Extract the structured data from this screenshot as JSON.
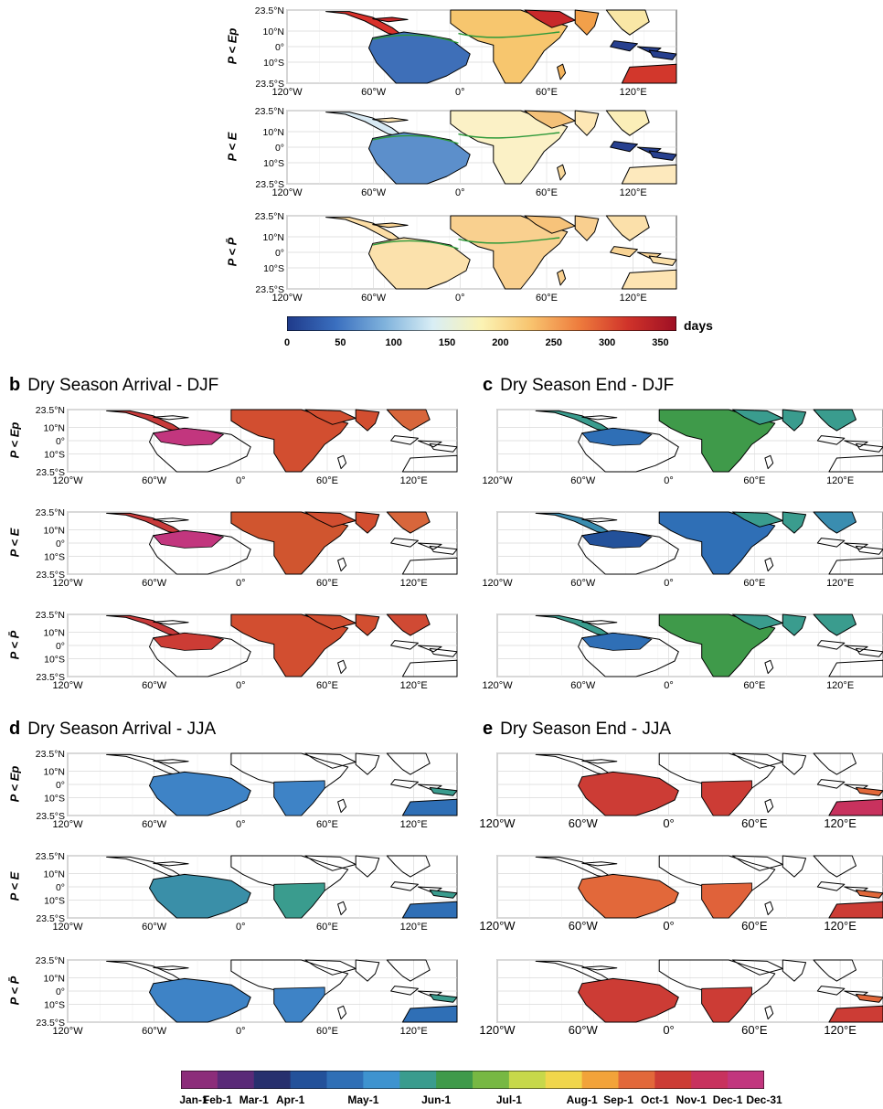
{
  "panels": [
    {
      "id": "a",
      "letter": "",
      "title": ""
    },
    {
      "id": "b",
      "letter": "b",
      "title": "Dry Season Arrival - DJF"
    },
    {
      "id": "c",
      "letter": "c",
      "title": "Dry Season End - DJF"
    },
    {
      "id": "d",
      "letter": "d",
      "title": "Dry Season Arrival - JJA"
    },
    {
      "id": "e",
      "letter": "e",
      "title": "Dry Season End - JJA"
    }
  ],
  "row_labels": [
    "P < Ep",
    "P < E",
    "P < P̄"
  ],
  "lat_ticks": [
    "23.5°N",
    "10°N",
    "0°",
    "10°S",
    "23.5°S"
  ],
  "lon_ticks": [
    "120°W",
    "60°W",
    "0°",
    "60°E",
    "120°E"
  ],
  "colorbar_days": {
    "label": "days",
    "ticks": [
      "0",
      "50",
      "100",
      "150",
      "200",
      "250",
      "300",
      "350"
    ],
    "colors": [
      "#1f3a8a",
      "#3a6fbf",
      "#7fb2dc",
      "#d9eef5",
      "#fbf3b4",
      "#f8c46f",
      "#ee7c3d",
      "#d0332a",
      "#9e0f24"
    ]
  },
  "colorbar_dates": {
    "ticks": [
      "Jan-1",
      "Feb-1",
      "Mar-1",
      "Apr-1",
      "May-1",
      "Jun-1",
      "Jul-1",
      "Aug-1",
      "Sep-1",
      "Oct-1",
      "Nov-1",
      "Dec-1",
      "Dec-31"
    ],
    "colors": [
      "#8c2d7a",
      "#5a2a78",
      "#27306e",
      "#23519a",
      "#2f6fb6",
      "#3e93cf",
      "#3a9c8e",
      "#3f9a4a",
      "#77b843",
      "#c7d84a",
      "#f1d64b",
      "#f2a33a",
      "#e2683a",
      "#cc3c35",
      "#c8325e",
      "#c2367e"
    ]
  }
}
